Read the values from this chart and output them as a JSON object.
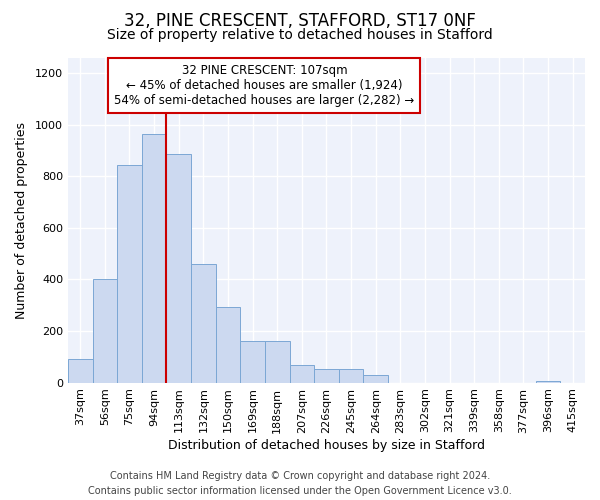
{
  "title1": "32, PINE CRESCENT, STAFFORD, ST17 0NF",
  "title2": "Size of property relative to detached houses in Stafford",
  "xlabel": "Distribution of detached houses by size in Stafford",
  "ylabel": "Number of detached properties",
  "footer1": "Contains HM Land Registry data © Crown copyright and database right 2024.",
  "footer2": "Contains public sector information licensed under the Open Government Licence v3.0.",
  "bar_labels": [
    "37sqm",
    "56sqm",
    "75sqm",
    "94sqm",
    "113sqm",
    "132sqm",
    "150sqm",
    "169sqm",
    "188sqm",
    "207sqm",
    "226sqm",
    "245sqm",
    "264sqm",
    "283sqm",
    "302sqm",
    "321sqm",
    "339sqm",
    "358sqm",
    "377sqm",
    "396sqm",
    "415sqm"
  ],
  "bar_values": [
    90,
    400,
    845,
    965,
    885,
    460,
    295,
    160,
    160,
    68,
    52,
    52,
    30,
    0,
    0,
    0,
    0,
    0,
    0,
    5,
    0
  ],
  "bar_color": "#ccd9f0",
  "bar_edge_color": "#7ba7d4",
  "vline_position": 3.5,
  "annotation_title": "32 PINE CRESCENT: 107sqm",
  "annotation_line1": "← 45% of detached houses are smaller (1,924)",
  "annotation_line2": "54% of semi-detached houses are larger (2,282) →",
  "annotation_box_facecolor": "#ffffff",
  "annotation_box_edgecolor": "#cc0000",
  "vline_color": "#cc0000",
  "ylim": [
    0,
    1260
  ],
  "yticks": [
    0,
    200,
    400,
    600,
    800,
    1000,
    1200
  ],
  "bg_color": "#eef2fb",
  "grid_color": "#ffffff",
  "fig_bg_color": "#ffffff",
  "title1_fontsize": 12,
  "title2_fontsize": 10,
  "axis_tick_fontsize": 8,
  "xlabel_fontsize": 9,
  "ylabel_fontsize": 9,
  "annotation_fontsize": 8.5,
  "footer_fontsize": 7
}
